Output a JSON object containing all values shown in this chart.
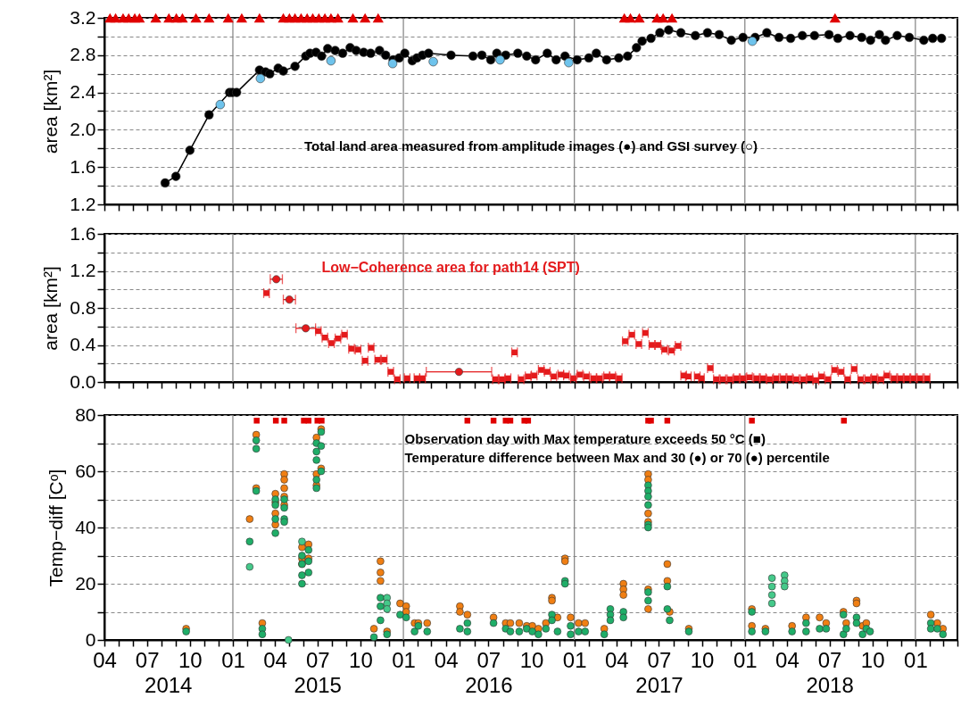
{
  "chart_data": [
    {
      "type": "line",
      "ylabel": "area [km²]",
      "tick_labels": "y",
      "grid": "y",
      "xlim": [
        "2014-04-01",
        "2019-04-01"
      ],
      "xticks": [
        {
          "value": "2014-04-01",
          "label": null
        },
        {
          "value": "2014-05-01",
          "label": null
        },
        {
          "value": "2014-06-01",
          "label": null
        },
        {
          "value": "2014-07-01",
          "label": null
        },
        {
          "value": "2014-08-01",
          "label": null
        },
        {
          "value": "2014-09-01",
          "label": null
        },
        {
          "value": "2014-10-01",
          "label": null
        },
        {
          "value": "2014-11-01",
          "label": null
        },
        {
          "value": "2014-12-01",
          "label": null
        },
        {
          "value": "2015-01-01",
          "label": null
        },
        {
          "value": "2015-02-01",
          "label": null
        },
        {
          "value": "2015-03-01",
          "label": null
        },
        {
          "value": "2015-04-01",
          "label": null
        },
        {
          "value": "2015-05-01",
          "label": null
        },
        {
          "value": "2015-06-01",
          "label": null
        },
        {
          "value": "2015-07-01",
          "label": null
        },
        {
          "value": "2015-08-01",
          "label": null
        },
        {
          "value": "2015-09-01",
          "label": null
        },
        {
          "value": "2015-10-01",
          "label": null
        },
        {
          "value": "2015-11-01",
          "label": null
        },
        {
          "value": "2015-12-01",
          "label": null
        },
        {
          "value": "2016-01-01",
          "label": null
        },
        {
          "value": "2016-02-01",
          "label": null
        },
        {
          "value": "2016-03-01",
          "label": null
        },
        {
          "value": "2016-04-01",
          "label": null
        },
        {
          "value": "2016-05-01",
          "label": null
        },
        {
          "value": "2016-06-01",
          "label": null
        },
        {
          "value": "2016-07-01",
          "label": null
        },
        {
          "value": "2016-08-01",
          "label": null
        },
        {
          "value": "2016-09-01",
          "label": null
        },
        {
          "value": "2016-10-01",
          "label": null
        },
        {
          "value": "2016-11-01",
          "label": null
        },
        {
          "value": "2016-12-01",
          "label": null
        },
        {
          "value": "2017-01-01",
          "label": null
        },
        {
          "value": "2017-02-01",
          "label": null
        },
        {
          "value": "2017-03-01",
          "label": null
        },
        {
          "value": "2017-04-01",
          "label": null
        },
        {
          "value": "2017-05-01",
          "label": null
        },
        {
          "value": "2017-06-01",
          "label": null
        },
        {
          "value": "2017-07-01",
          "label": null
        },
        {
          "value": "2017-08-01",
          "label": null
        },
        {
          "value": "2017-09-01",
          "label": null
        },
        {
          "value": "2017-10-01",
          "label": null
        },
        {
          "value": "2017-11-01",
          "label": null
        },
        {
          "value": "2017-12-01",
          "label": null
        },
        {
          "value": "2018-01-01",
          "label": null
        },
        {
          "value": "2018-02-01",
          "label": null
        },
        {
          "value": "2018-03-01",
          "label": null
        },
        {
          "value": "2018-04-01",
          "label": null
        },
        {
          "value": "2018-05-01",
          "label": null
        },
        {
          "value": "2018-06-01",
          "label": null
        },
        {
          "value": "2018-07-01",
          "label": null
        },
        {
          "value": "2018-08-01",
          "label": null
        },
        {
          "value": "2018-09-01",
          "label": null
        },
        {
          "value": "2018-10-01",
          "label": null
        },
        {
          "value": "2018-11-01",
          "label": null
        },
        {
          "value": "2018-12-01",
          "label": null
        },
        {
          "value": "2019-01-01",
          "label": null
        },
        {
          "value": "2019-02-01",
          "label": null
        },
        {
          "value": "2019-03-01",
          "label": null
        },
        {
          "value": "2019-04-01",
          "label": null
        }
      ],
      "ylim": [
        1.2,
        3.2
      ],
      "yticks": [
        1.2,
        {
          "value": 1.4,
          "label": null
        },
        1.6,
        {
          "value": 1.8,
          "label": null
        },
        {
          "value": 2.0,
          "label": "2.0"
        },
        {
          "value": 2.2,
          "label": null
        },
        2.4,
        {
          "value": 2.6,
          "label": null
        },
        2.8,
        {
          "value": 3.0,
          "label": null
        },
        3.2
      ],
      "ref_lines": [
        {
          "axis": "x",
          "value": "2015-01-01",
          "color": "#808080"
        },
        {
          "axis": "x",
          "value": "2016-01-01",
          "color": "#808080"
        },
        {
          "axis": "x",
          "value": "2017-01-01",
          "color": "#808080"
        },
        {
          "axis": "x",
          "value": "2018-01-01",
          "color": "#808080"
        },
        {
          "axis": "x",
          "value": "2019-01-01",
          "color": "#808080"
        }
      ],
      "annotations": [
        "Total land area measured from amplitude images (●) and GSI survey (○)"
      ],
      "series": [
        {
          "color": "#000000",
          "marker": "circle",
          "x": [
            "2014-08-09",
            "2014-09-01",
            "2014-10-01",
            "2014-11-11",
            "2014-12-25",
            "2014-12-31",
            "2015-01-09",
            "2015-02-27",
            "2015-03-12",
            "2015-03-21",
            "2015-04-08",
            "2015-04-19",
            "2015-05-14",
            "2015-06-06",
            "2015-06-15",
            "2015-06-28",
            "2015-07-10",
            "2015-07-23",
            "2015-08-08",
            "2015-08-24",
            "2015-09-09",
            "2015-09-22",
            "2015-10-08",
            "2015-10-23",
            "2015-11-11",
            "2015-11-24",
            "2015-12-10",
            "2015-12-23",
            "2016-01-04",
            "2016-01-20",
            "2016-01-30",
            "2016-02-11",
            "2016-02-24",
            "2016-04-12",
            "2016-05-29",
            "2016-06-17",
            "2016-07-06",
            "2016-07-19",
            "2016-08-07",
            "2016-09-02",
            "2016-09-21",
            "2016-10-10",
            "2016-11-04",
            "2016-11-23",
            "2016-12-12",
            "2017-01-07",
            "2017-02-01",
            "2017-02-17",
            "2017-03-11",
            "2017-04-06",
            "2017-04-25",
            "2017-05-14",
            "2017-05-26",
            "2017-06-14",
            "2017-07-03",
            "2017-07-22",
            "2017-08-17",
            "2017-09-17",
            "2017-10-13",
            "2017-11-07",
            "2017-12-03",
            "2017-12-28",
            "2018-01-23",
            "2018-02-17",
            "2018-03-15",
            "2018-04-09",
            "2018-05-04",
            "2018-05-30",
            "2018-06-30",
            "2018-07-19",
            "2018-08-14",
            "2018-09-08",
            "2018-09-27",
            "2018-10-16",
            "2018-10-29",
            "2018-11-23",
            "2018-12-19",
            "2019-01-19",
            "2019-02-07",
            "2019-02-26"
          ],
          "values": [
            1.43,
            1.5,
            1.78,
            2.16,
            2.4,
            2.4,
            2.4,
            2.64,
            2.62,
            2.6,
            2.66,
            2.63,
            2.68,
            2.79,
            2.82,
            2.83,
            2.79,
            2.87,
            2.85,
            2.82,
            2.88,
            2.85,
            2.83,
            2.82,
            2.85,
            2.8,
            2.75,
            2.77,
            2.82,
            2.74,
            2.77,
            2.8,
            2.82,
            2.8,
            2.79,
            2.8,
            2.75,
            2.82,
            2.8,
            2.82,
            2.79,
            2.75,
            2.82,
            2.75,
            2.79,
            2.75,
            2.77,
            2.82,
            2.75,
            2.77,
            2.79,
            2.88,
            2.95,
            2.98,
            3.04,
            3.07,
            3.04,
            3.01,
            3.04,
            3.02,
            2.96,
            2.99,
            2.99,
            3.04,
            2.99,
            2.98,
            3.01,
            3.01,
            3.02,
            2.98,
            3.01,
            2.99,
            2.96,
            3.02,
            2.96,
            3.01,
            2.99,
            2.96,
            2.98,
            2.98
          ]
        },
        {
          "type": "scatter",
          "color": "#6ec3ec",
          "marker": "circle",
          "x": [
            "2014-12-05",
            "2015-03-01",
            "2015-07-30",
            "2015-12-09",
            "2016-03-05",
            "2016-07-26",
            "2016-12-20",
            "2018-01-17"
          ],
          "values": [
            2.27,
            2.55,
            2.74,
            2.71,
            2.73,
            2.75,
            2.72,
            2.95
          ]
        },
        {
          "type": "scatter",
          "color": "#e00000",
          "marker": "triangle",
          "x": [
            "2014-04-13",
            "2014-04-25",
            "2014-05-11",
            "2014-05-23",
            "2014-06-05",
            "2014-06-15",
            "2014-07-20",
            "2014-08-17",
            "2014-09-02",
            "2014-09-15",
            "2014-10-14",
            "2014-11-11",
            "2014-12-22",
            "2015-01-20",
            "2015-02-27",
            "2015-04-19",
            "2015-05-02",
            "2015-05-14",
            "2015-05-27",
            "2015-06-09",
            "2015-06-21",
            "2015-07-04",
            "2015-07-17",
            "2015-07-30",
            "2015-08-14",
            "2015-09-15",
            "2015-10-11",
            "2015-11-08",
            "2017-04-18",
            "2017-05-01",
            "2017-05-20",
            "2017-06-27",
            "2017-07-10",
            "2017-07-29",
            "2018-07-13"
          ],
          "values": [
            3.2,
            3.2,
            3.2,
            3.2,
            3.2,
            3.2,
            3.2,
            3.2,
            3.2,
            3.2,
            3.2,
            3.2,
            3.2,
            3.2,
            3.2,
            3.2,
            3.2,
            3.2,
            3.2,
            3.2,
            3.2,
            3.2,
            3.2,
            3.2,
            3.2,
            3.2,
            3.2,
            3.2,
            3.2,
            3.2,
            3.2,
            3.2,
            3.2,
            3.2,
            3.2
          ]
        }
      ]
    },
    {
      "type": "scatter",
      "ylabel": "area [km²]",
      "tick_labels": "y",
      "grid": "y",
      "xlim": [
        "2014-04-01",
        "2019-04-01"
      ],
      "xticks": [
        {
          "value": "2014-04-01",
          "label": null
        },
        {
          "value": "2014-05-01",
          "label": null
        },
        {
          "value": "2014-06-01",
          "label": null
        },
        {
          "value": "2014-07-01",
          "label": null
        },
        {
          "value": "2014-08-01",
          "label": null
        },
        {
          "value": "2014-09-01",
          "label": null
        },
        {
          "value": "2014-10-01",
          "label": null
        },
        {
          "value": "2014-11-01",
          "label": null
        },
        {
          "value": "2014-12-01",
          "label": null
        },
        {
          "value": "2015-01-01",
          "label": null
        },
        {
          "value": "2015-02-01",
          "label": null
        },
        {
          "value": "2015-03-01",
          "label": null
        },
        {
          "value": "2015-04-01",
          "label": null
        },
        {
          "value": "2015-05-01",
          "label": null
        },
        {
          "value": "2015-06-01",
          "label": null
        },
        {
          "value": "2015-07-01",
          "label": null
        },
        {
          "value": "2015-08-01",
          "label": null
        },
        {
          "value": "2015-09-01",
          "label": null
        },
        {
          "value": "2015-10-01",
          "label": null
        },
        {
          "value": "2015-11-01",
          "label": null
        },
        {
          "value": "2015-12-01",
          "label": null
        },
        {
          "value": "2016-01-01",
          "label": null
        },
        {
          "value": "2016-02-01",
          "label": null
        },
        {
          "value": "2016-03-01",
          "label": null
        },
        {
          "value": "2016-04-01",
          "label": null
        },
        {
          "value": "2016-05-01",
          "label": null
        },
        {
          "value": "2016-06-01",
          "label": null
        },
        {
          "value": "2016-07-01",
          "label": null
        },
        {
          "value": "2016-08-01",
          "label": null
        },
        {
          "value": "2016-09-01",
          "label": null
        },
        {
          "value": "2016-10-01",
          "label": null
        },
        {
          "value": "2016-11-01",
          "label": null
        },
        {
          "value": "2016-12-01",
          "label": null
        },
        {
          "value": "2017-01-01",
          "label": null
        },
        {
          "value": "2017-02-01",
          "label": null
        },
        {
          "value": "2017-03-01",
          "label": null
        },
        {
          "value": "2017-04-01",
          "label": null
        },
        {
          "value": "2017-05-01",
          "label": null
        },
        {
          "value": "2017-06-01",
          "label": null
        },
        {
          "value": "2017-07-01",
          "label": null
        },
        {
          "value": "2017-08-01",
          "label": null
        },
        {
          "value": "2017-09-01",
          "label": null
        },
        {
          "value": "2017-10-01",
          "label": null
        },
        {
          "value": "2017-11-01",
          "label": null
        },
        {
          "value": "2017-12-01",
          "label": null
        },
        {
          "value": "2018-01-01",
          "label": null
        },
        {
          "value": "2018-02-01",
          "label": null
        },
        {
          "value": "2018-03-01",
          "label": null
        },
        {
          "value": "2018-04-01",
          "label": null
        },
        {
          "value": "2018-05-01",
          "label": null
        },
        {
          "value": "2018-06-01",
          "label": null
        },
        {
          "value": "2018-07-01",
          "label": null
        },
        {
          "value": "2018-08-01",
          "label": null
        },
        {
          "value": "2018-09-01",
          "label": null
        },
        {
          "value": "2018-10-01",
          "label": null
        },
        {
          "value": "2018-11-01",
          "label": null
        },
        {
          "value": "2018-12-01",
          "label": null
        },
        {
          "value": "2019-01-01",
          "label": null
        },
        {
          "value": "2019-02-01",
          "label": null
        },
        {
          "value": "2019-03-01",
          "label": null
        },
        {
          "value": "2019-04-01",
          "label": null
        }
      ],
      "ylim": [
        0,
        1.6
      ],
      "yticks": [
        {
          "value": 0,
          "label": "0.0"
        },
        {
          "value": 0.2,
          "label": null
        },
        0.4,
        {
          "value": 0.6,
          "label": null
        },
        0.8,
        {
          "value": 1.0,
          "label": null
        },
        1.2,
        {
          "value": 1.4,
          "label": null
        },
        1.6
      ],
      "ref_lines": [
        {
          "axis": "x",
          "value": "2015-01-01",
          "color": "#808080"
        },
        {
          "axis": "x",
          "value": "2016-01-01",
          "color": "#808080"
        },
        {
          "axis": "x",
          "value": "2017-01-01",
          "color": "#808080"
        },
        {
          "axis": "x",
          "value": "2018-01-01",
          "color": "#808080"
        },
        {
          "axis": "x",
          "value": "2019-01-01",
          "color": "#808080"
        }
      ],
      "series": [
        {
          "name": "Low−Coherence area for path14 (SPT)",
          "color": "#e41a1c",
          "marker": "square",
          "x": [
            "2015-03-14",
            "2015-07-03",
            "2015-07-17",
            "2015-07-31",
            "2015-08-14",
            "2015-08-28",
            "2015-09-12",
            "2015-09-26",
            "2015-10-11",
            "2015-10-24",
            "2015-11-07",
            "2015-11-21",
            "2015-12-05",
            "2015-12-19",
            "2016-01-09",
            "2016-01-30",
            "2016-02-11",
            "2016-07-16",
            "2016-07-30",
            "2016-08-12",
            "2016-08-26",
            "2016-09-09",
            "2016-09-24",
            "2016-10-07",
            "2016-10-22",
            "2016-11-04",
            "2016-11-18",
            "2016-12-03",
            "2016-12-15",
            "2016-12-30",
            "2017-01-13",
            "2017-01-27",
            "2017-02-11",
            "2017-02-24",
            "2017-03-11",
            "2017-03-24",
            "2017-04-07",
            "2017-04-20",
            "2017-05-04",
            "2017-05-19",
            "2017-06-02",
            "2017-06-16",
            "2017-06-29",
            "2017-07-13",
            "2017-07-28",
            "2017-08-11",
            "2017-08-23",
            "2017-09-02",
            "2017-09-21",
            "2017-09-30",
            "2017-10-19",
            "2017-11-01",
            "2017-11-15",
            "2017-11-30",
            "2017-12-14",
            "2017-12-28",
            "2018-01-11",
            "2018-01-26",
            "2018-02-09",
            "2018-02-23",
            "2018-03-09",
            "2018-03-24",
            "2018-04-07",
            "2018-04-21",
            "2018-05-06",
            "2018-05-20",
            "2018-06-02",
            "2018-06-14",
            "2018-06-28",
            "2018-07-12",
            "2018-07-26",
            "2018-08-09",
            "2018-08-23",
            "2018-09-06",
            "2018-09-21",
            "2018-10-05",
            "2018-10-19",
            "2018-11-01",
            "2018-11-16",
            "2018-11-30",
            "2018-12-14",
            "2018-12-28",
            "2019-01-11",
            "2019-01-26"
          ],
          "values": [
            0.96,
            0.55,
            0.48,
            0.42,
            0.47,
            0.51,
            0.36,
            0.35,
            0.23,
            0.37,
            0.24,
            0.24,
            0.11,
            0.03,
            0.04,
            0.04,
            0.04,
            0.03,
            0.03,
            0.04,
            0.32,
            0.03,
            0.06,
            0.07,
            0.13,
            0.11,
            0.06,
            0.08,
            0.07,
            0.04,
            0.08,
            0.06,
            0.04,
            0.04,
            0.06,
            0.06,
            0.04,
            0.44,
            0.51,
            0.41,
            0.53,
            0.4,
            0.4,
            0.35,
            0.34,
            0.39,
            0.07,
            0.06,
            0.06,
            0.04,
            0.15,
            0.03,
            0.03,
            0.03,
            0.04,
            0.04,
            0.05,
            0.04,
            0.04,
            0.03,
            0.04,
            0.04,
            0.04,
            0.03,
            0.03,
            0.04,
            0.02,
            0.06,
            0.03,
            0.13,
            0.11,
            0.03,
            0.14,
            0.03,
            0.03,
            0.04,
            0.03,
            0.07,
            0.04,
            0.04,
            0.04,
            0.04,
            0.04,
            0.04
          ],
          "xerrors": [
            6,
            6,
            6,
            6,
            6,
            6,
            6,
            6,
            6,
            6,
            6,
            6,
            6,
            6,
            6,
            6,
            6,
            6,
            6,
            6,
            6,
            6,
            6,
            6,
            6,
            6,
            6,
            6,
            6,
            6,
            6,
            6,
            6,
            6,
            6,
            6,
            6,
            6,
            6,
            6,
            6,
            6,
            6,
            6,
            6,
            6,
            6,
            6,
            6,
            6,
            6,
            6,
            6,
            6,
            6,
            6,
            6,
            6,
            6,
            6,
            6,
            6,
            6,
            6,
            6,
            6,
            6,
            6,
            6,
            6,
            6,
            6,
            6,
            6,
            6,
            6,
            6,
            6,
            6,
            6,
            6,
            6,
            6,
            6
          ]
        },
        {
          "color": "#e41a1c",
          "marker": "circle",
          "x": [
            "2015-04-04",
            "2015-05-02",
            "2015-06-06",
            "2016-04-29"
          ],
          "values": [
            1.11,
            0.89,
            0.58,
            0.11
          ],
          "xerrors": [
            13,
            13,
            21,
            70
          ]
        }
      ]
    },
    {
      "type": "scatter",
      "ylabel": "Temp−diff [Cᵒ]",
      "grid": "y",
      "xlim": [
        "2014-04-01",
        "2019-04-01"
      ],
      "xticks": [
        {
          "value": "2014-04-01",
          "label": "04"
        },
        {
          "value": "2014-05-01",
          "label": null
        },
        {
          "value": "2014-06-01",
          "label": null
        },
        {
          "value": "2014-07-01",
          "label": "07"
        },
        {
          "value": "2014-08-01",
          "label": null
        },
        {
          "value": "2014-09-01",
          "label": null
        },
        {
          "value": "2014-10-01",
          "label": "10"
        },
        {
          "value": "2014-11-01",
          "label": null
        },
        {
          "value": "2014-12-01",
          "label": null
        },
        {
          "value": "2015-01-01",
          "label": "01"
        },
        {
          "value": "2015-02-01",
          "label": null
        },
        {
          "value": "2015-03-01",
          "label": null
        },
        {
          "value": "2015-04-01",
          "label": "04"
        },
        {
          "value": "2015-05-01",
          "label": null
        },
        {
          "value": "2015-06-01",
          "label": null
        },
        {
          "value": "2015-07-01",
          "label": "07"
        },
        {
          "value": "2015-08-01",
          "label": null
        },
        {
          "value": "2015-09-01",
          "label": null
        },
        {
          "value": "2015-10-01",
          "label": "10"
        },
        {
          "value": "2015-11-01",
          "label": null
        },
        {
          "value": "2015-12-01",
          "label": null
        },
        {
          "value": "2016-01-01",
          "label": "01"
        },
        {
          "value": "2016-02-01",
          "label": null
        },
        {
          "value": "2016-03-01",
          "label": null
        },
        {
          "value": "2016-04-01",
          "label": "04"
        },
        {
          "value": "2016-05-01",
          "label": null
        },
        {
          "value": "2016-06-01",
          "label": null
        },
        {
          "value": "2016-07-01",
          "label": "07"
        },
        {
          "value": "2016-08-01",
          "label": null
        },
        {
          "value": "2016-09-01",
          "label": null
        },
        {
          "value": "2016-10-01",
          "label": "10"
        },
        {
          "value": "2016-11-01",
          "label": null
        },
        {
          "value": "2016-12-01",
          "label": null
        },
        {
          "value": "2017-01-01",
          "label": "01"
        },
        {
          "value": "2017-02-01",
          "label": null
        },
        {
          "value": "2017-03-01",
          "label": null
        },
        {
          "value": "2017-04-01",
          "label": "04"
        },
        {
          "value": "2017-05-01",
          "label": null
        },
        {
          "value": "2017-06-01",
          "label": null
        },
        {
          "value": "2017-07-01",
          "label": "07"
        },
        {
          "value": "2017-08-01",
          "label": null
        },
        {
          "value": "2017-09-01",
          "label": null
        },
        {
          "value": "2017-10-01",
          "label": "10"
        },
        {
          "value": "2017-11-01",
          "label": null
        },
        {
          "value": "2017-12-01",
          "label": null
        },
        {
          "value": "2018-01-01",
          "label": "01"
        },
        {
          "value": "2018-02-01",
          "label": null
        },
        {
          "value": "2018-03-01",
          "label": null
        },
        {
          "value": "2018-04-01",
          "label": "04"
        },
        {
          "value": "2018-05-01",
          "label": null
        },
        {
          "value": "2018-06-01",
          "label": null
        },
        {
          "value": "2018-07-01",
          "label": "07"
        },
        {
          "value": "2018-08-01",
          "label": null
        },
        {
          "value": "2018-09-01",
          "label": null
        },
        {
          "value": "2018-10-01",
          "label": "10"
        },
        {
          "value": "2018-11-01",
          "label": null
        },
        {
          "value": "2018-12-01",
          "label": null
        },
        {
          "value": "2019-01-01",
          "label": "01"
        },
        {
          "value": "2019-02-01",
          "label": null
        },
        {
          "value": "2019-03-01",
          "label": null
        },
        {
          "value": "2019-04-01",
          "label": null
        }
      ],
      "x2lim": [
        "2014-04-01",
        "2019-04-01"
      ],
      "x2ticks": [
        {
          "value": "2014-08-16",
          "label": "2014"
        },
        {
          "value": "2015-07-02",
          "label": "2015"
        },
        {
          "value": "2016-07-02",
          "label": "2016"
        },
        {
          "value": "2017-07-02",
          "label": "2017"
        },
        {
          "value": "2018-07-02",
          "label": "2018"
        }
      ],
      "ylim": [
        0,
        80
      ],
      "yticks": [
        0,
        {
          "value": 10,
          "label": null
        },
        20,
        {
          "value": 30,
          "label": null
        },
        40,
        {
          "value": 50,
          "label": null
        },
        60,
        {
          "value": 70,
          "label": null
        },
        80
      ],
      "ref_lines": [
        {
          "axis": "x",
          "value": "2015-01-01",
          "color": "#808080"
        },
        {
          "axis": "x",
          "value": "2016-01-01",
          "color": "#808080"
        },
        {
          "axis": "x",
          "value": "2017-01-01",
          "color": "#808080"
        },
        {
          "axis": "x",
          "value": "2018-01-01",
          "color": "#808080"
        },
        {
          "axis": "x",
          "value": "2019-01-01",
          "color": "#808080"
        }
      ],
      "annotations": [
        "Observation day with Max temperature exceeds 50 °C (■)",
        "Temperature difference between Max and 30 (●) or 70 (●) percentile"
      ],
      "series": [
        {
          "color": "#f07f13",
          "marker": "circle",
          "x": [
            "2014-09-23",
            "2015-02-06",
            "2015-02-20",
            "2015-02-20",
            "2015-03-05",
            "2015-04-02",
            "2015-04-02",
            "2015-04-02",
            "2015-04-02",
            "2015-04-21",
            "2015-04-21",
            "2015-04-21",
            "2015-04-21",
            "2015-04-21",
            "2015-05-29",
            "2015-05-29",
            "2015-05-29",
            "2015-06-12",
            "2015-06-12",
            "2015-06-29",
            "2015-06-29",
            "2015-06-29",
            "2015-07-09",
            "2015-07-09",
            "2015-10-30",
            "2015-11-13",
            "2015-11-13",
            "2015-11-13",
            "2015-11-27",
            "2015-12-25",
            "2016-01-07",
            "2016-01-07",
            "2016-01-25",
            "2016-02-02",
            "2016-02-21",
            "2016-05-01",
            "2016-05-01",
            "2016-05-17",
            "2016-07-12",
            "2016-08-07",
            "2016-08-17",
            "2016-09-05",
            "2016-09-21",
            "2016-10-03",
            "2016-10-16",
            "2016-11-01",
            "2016-11-14",
            "2016-11-14",
            "2016-11-26",
            "2016-12-12",
            "2016-12-12",
            "2016-12-24",
            "2017-01-10",
            "2017-01-24",
            "2017-03-06",
            "2017-04-16",
            "2017-04-16",
            "2017-04-16",
            "2017-06-08",
            "2017-06-08",
            "2017-06-08",
            "2017-06-08",
            "2017-06-08",
            "2017-06-08",
            "2017-07-19",
            "2017-07-19",
            "2017-07-24",
            "2017-09-03",
            "2018-01-16",
            "2018-01-16",
            "2018-02-14",
            "2018-04-12",
            "2018-05-12",
            "2018-06-10",
            "2018-06-24",
            "2018-07-31",
            "2018-08-06",
            "2018-08-28",
            "2018-08-28",
            "2018-09-10",
            "2018-09-18",
            "2019-02-03",
            "2019-02-17",
            "2019-03-01"
          ],
          "values": [
            4,
            43,
            73,
            54,
            6,
            52,
            49,
            45,
            41,
            59,
            57,
            54,
            51,
            48,
            33,
            29,
            27,
            34,
            29,
            72,
            59,
            55,
            75,
            61,
            4,
            28,
            24,
            21,
            3,
            13,
            12,
            10,
            6,
            6,
            6,
            12,
            10,
            9,
            8,
            6,
            6,
            6,
            5,
            5,
            4,
            6,
            15,
            14,
            8,
            29,
            28,
            8,
            6,
            6,
            4,
            20,
            18,
            16,
            59,
            57,
            45,
            42,
            18,
            11,
            27,
            21,
            10,
            4,
            11,
            5,
            4,
            5,
            8,
            8,
            6,
            10,
            6,
            14,
            13,
            5,
            6,
            9,
            6,
            4
          ]
        },
        {
          "color": "#1fae68",
          "marker": "circle",
          "x": [
            "2014-09-23",
            "2015-02-06",
            "2015-02-20",
            "2015-02-20",
            "2015-02-20",
            "2015-03-05",
            "2015-03-05",
            "2015-04-02",
            "2015-04-02",
            "2015-04-02",
            "2015-04-02",
            "2015-04-21",
            "2015-04-21",
            "2015-04-21",
            "2015-04-21",
            "2015-05-29",
            "2015-05-29",
            "2015-05-29",
            "2015-05-29",
            "2015-06-12",
            "2015-06-12",
            "2015-06-12",
            "2015-06-29",
            "2015-06-29",
            "2015-06-29",
            "2015-06-29",
            "2015-06-29",
            "2015-07-09",
            "2015-07-09",
            "2015-07-09",
            "2015-10-30",
            "2015-11-13",
            "2015-11-13",
            "2015-11-13",
            "2015-11-27",
            "2015-12-25",
            "2016-01-07",
            "2016-01-25",
            "2016-02-02",
            "2016-02-21",
            "2016-05-01",
            "2016-05-17",
            "2016-05-17",
            "2016-07-12",
            "2016-08-07",
            "2016-08-17",
            "2016-09-05",
            "2016-09-21",
            "2016-10-03",
            "2016-10-16",
            "2016-11-01",
            "2016-11-14",
            "2016-11-14",
            "2016-11-26",
            "2016-12-12",
            "2016-12-12",
            "2016-12-24",
            "2016-12-24",
            "2017-01-10",
            "2017-01-24",
            "2017-03-06",
            "2017-03-19",
            "2017-03-19",
            "2017-03-19",
            "2017-04-16",
            "2017-04-16",
            "2017-06-08",
            "2017-06-08",
            "2017-06-08",
            "2017-06-08",
            "2017-06-08",
            "2017-06-08",
            "2017-06-08",
            "2017-06-08",
            "2017-07-19",
            "2017-07-19",
            "2017-07-24",
            "2017-09-03",
            "2018-01-16",
            "2018-01-16",
            "2018-02-14",
            "2018-04-12",
            "2018-05-12",
            "2018-05-12",
            "2018-06-10",
            "2018-06-24",
            "2018-07-31",
            "2018-07-31",
            "2018-08-06",
            "2018-08-28",
            "2018-08-28",
            "2018-09-10",
            "2018-09-18",
            "2018-09-26",
            "2019-02-03",
            "2019-02-03",
            "2019-02-17",
            "2019-03-01"
          ],
          "values": [
            3,
            35,
            71,
            68,
            53,
            4,
            2,
            50,
            48,
            43,
            38,
            50,
            47,
            43,
            42,
            30,
            27,
            23,
            20,
            32,
            28,
            24,
            70,
            67,
            64,
            57,
            54,
            74,
            69,
            60,
            1,
            15,
            12,
            7,
            2,
            9,
            8,
            3,
            5,
            3,
            4,
            6,
            3,
            6,
            4,
            3,
            3,
            4,
            3,
            2,
            4,
            9,
            7,
            3,
            21,
            20,
            5,
            2,
            3,
            3,
            2,
            11,
            9,
            7,
            10,
            8,
            55,
            53,
            51,
            48,
            41,
            40,
            17,
            14,
            19,
            11,
            7,
            3,
            10,
            3,
            3,
            3,
            6,
            3,
            4,
            4,
            9,
            2,
            4,
            8,
            6,
            2,
            4,
            3,
            6,
            4,
            4,
            2
          ]
        },
        {
          "color": "#45c98a",
          "marker": "circle",
          "x": [
            "2015-02-06",
            "2015-04-30",
            "2015-05-29",
            "2015-11-27",
            "2015-11-27",
            "2015-11-27",
            "2018-02-28",
            "2018-02-28",
            "2018-02-28",
            "2018-02-28",
            "2018-03-27",
            "2018-03-27",
            "2018-03-27"
          ],
          "values": [
            26,
            0,
            35,
            15,
            13,
            11,
            22,
            19,
            16,
            13,
            23,
            21,
            19
          ]
        },
        {
          "color": "#e00000",
          "marker": "square",
          "x": [
            "2015-02-21",
            "2015-04-03",
            "2015-04-21",
            "2015-06-02",
            "2015-06-12",
            "2015-07-01",
            "2015-07-10",
            "2016-05-17",
            "2016-07-12",
            "2016-08-07",
            "2016-08-17",
            "2016-09-16",
            "2016-09-24",
            "2017-06-08",
            "2017-06-14",
            "2017-07-19",
            "2018-01-16",
            "2018-08-01"
          ],
          "values": [
            78,
            78,
            78,
            78,
            78,
            78,
            78,
            78,
            78,
            78,
            78,
            78,
            78,
            78,
            78,
            78,
            78,
            78
          ]
        }
      ]
    }
  ]
}
